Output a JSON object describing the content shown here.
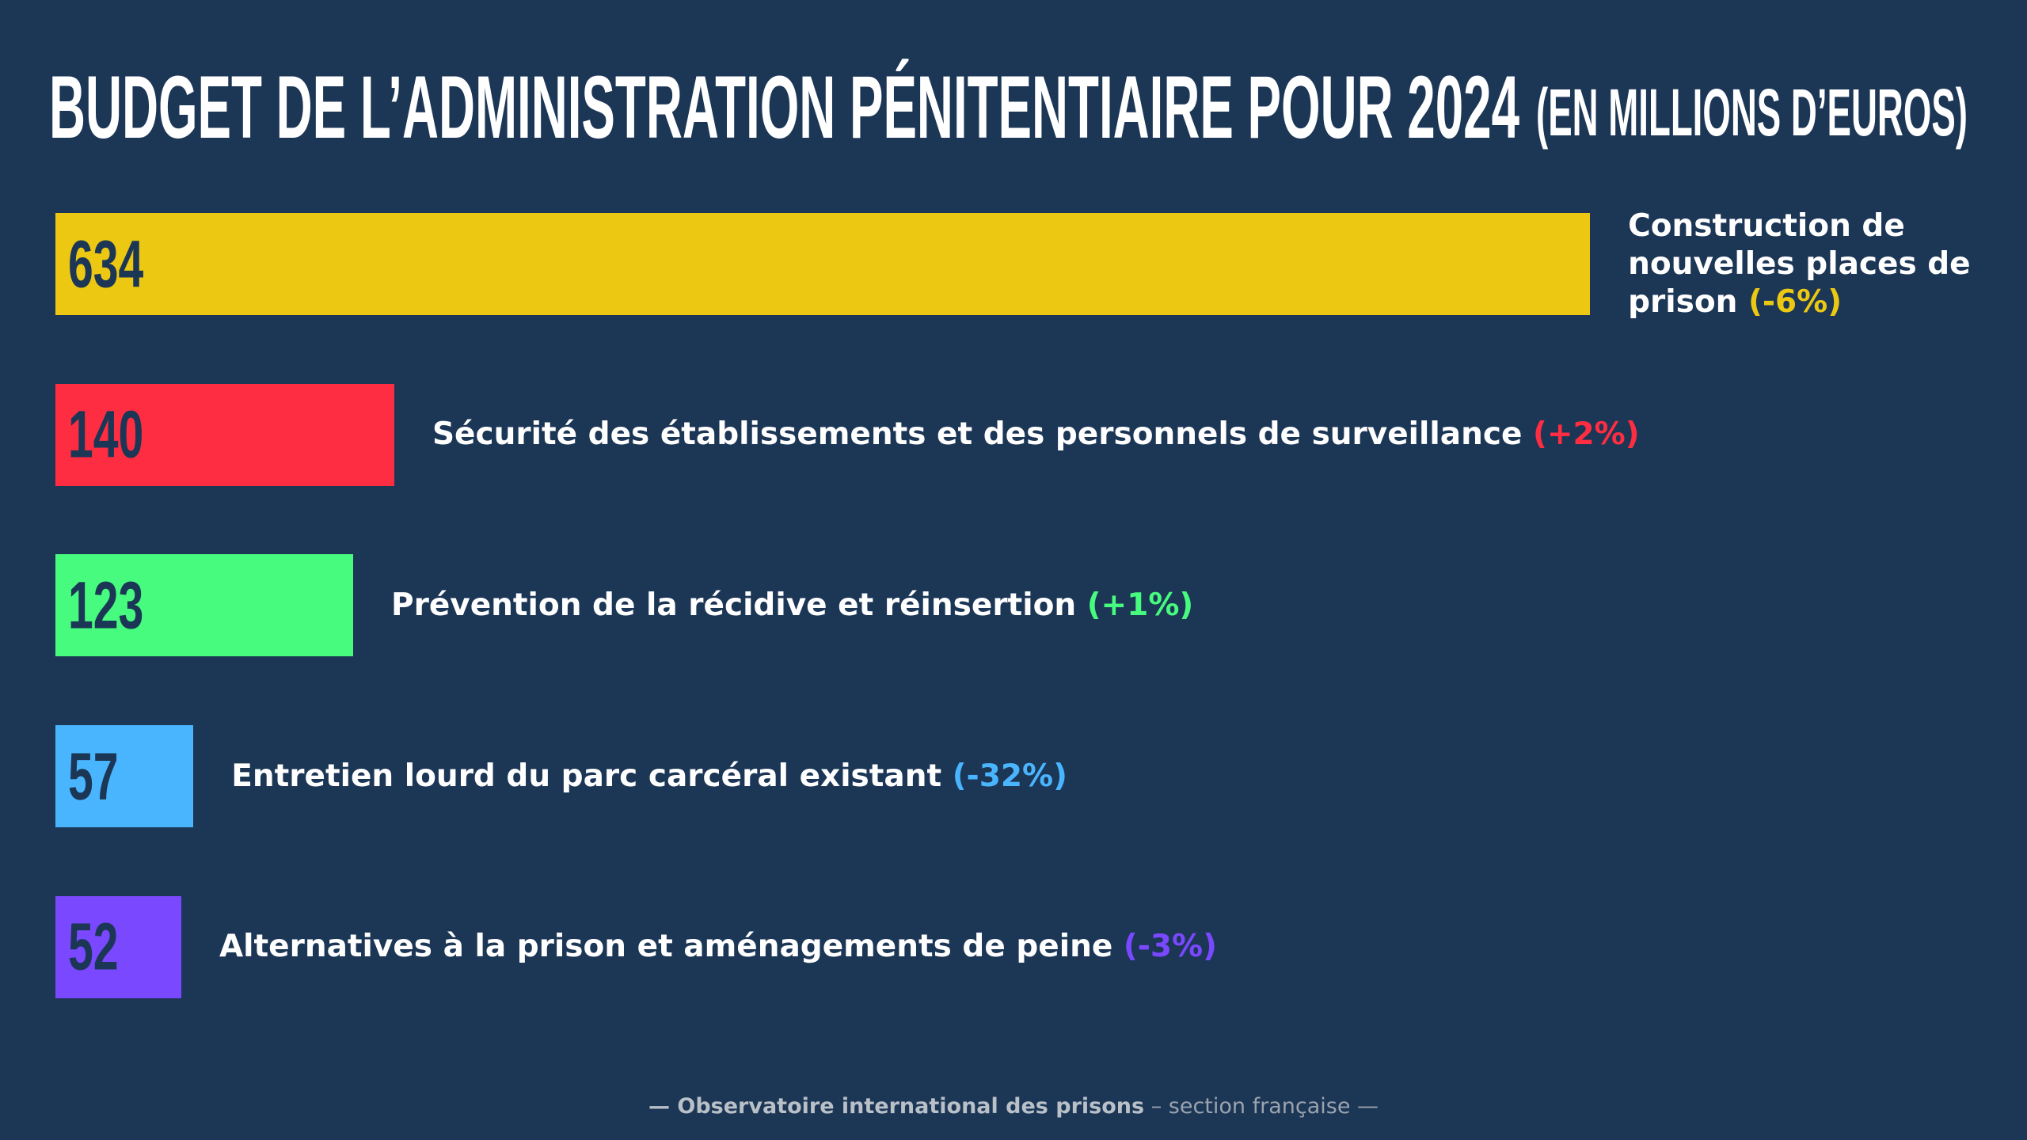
{
  "chart_data": {
    "type": "bar",
    "title": "BUDGET DE L’ADMINISTRATION PÉNITENTIAIRE POUR 2024",
    "subtitle": "(EN MILLIONS D’EUROS)",
    "categories": [
      "Construction de nouvelles places de prison",
      "Sécurité des établissements et des personnels de surveillance",
      "Prévention de la récidive et réinsertion",
      "Entretien lourd du parc carcéral existant",
      "Alternatives à la prison et aménagements de peine"
    ],
    "changes": [
      "(-6%)",
      "(+2%)",
      "(+1%)",
      "(-32%)",
      "(-3%)"
    ],
    "values": [
      634,
      140,
      123,
      57,
      52
    ],
    "colors": [
      "#ecc813",
      "#ff2d41",
      "#47fb7e",
      "#4ab5ff",
      "#7a48ff"
    ],
    "footer": {
      "source": "— Observatoire international des prisons",
      "section": "– section française —"
    }
  }
}
